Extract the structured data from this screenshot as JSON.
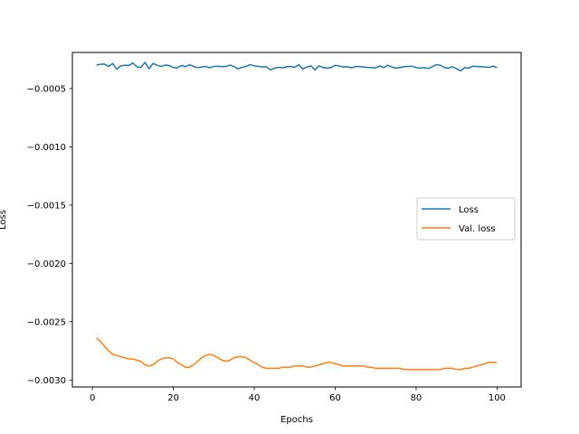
{
  "chart_data": {
    "type": "line",
    "title": "",
    "xlabel": "Epochs",
    "ylabel": "Loss",
    "xlim": [
      -4.95,
      105.95
    ],
    "ylim": [
      -0.00306,
      -0.00019
    ],
    "xticks": [
      0,
      20,
      40,
      60,
      80,
      100
    ],
    "xtick_labels": [
      "0",
      "20",
      "40",
      "60",
      "80",
      "100"
    ],
    "yticks": [
      -0.0005,
      -0.001,
      -0.0015,
      -0.002,
      -0.0025,
      -0.003
    ],
    "ytick_labels": [
      "−0.0005",
      "−0.0010",
      "−0.0015",
      "−0.0020",
      "−0.0025",
      "−0.0030"
    ],
    "grid": false,
    "legend": "center-right",
    "x": [
      1,
      2,
      3,
      4,
      5,
      6,
      7,
      8,
      9,
      10,
      11,
      12,
      13,
      14,
      15,
      16,
      17,
      18,
      19,
      20,
      21,
      22,
      23,
      24,
      25,
      26,
      27,
      28,
      29,
      30,
      31,
      32,
      33,
      34,
      35,
      36,
      37,
      38,
      39,
      40,
      41,
      42,
      43,
      44,
      45,
      46,
      47,
      48,
      49,
      50,
      51,
      52,
      53,
      54,
      55,
      56,
      57,
      58,
      59,
      60,
      61,
      62,
      63,
      64,
      65,
      66,
      67,
      68,
      69,
      70,
      71,
      72,
      73,
      74,
      75,
      76,
      77,
      78,
      79,
      80,
      81,
      82,
      83,
      84,
      85,
      86,
      87,
      88,
      89,
      90,
      91,
      92,
      93,
      94,
      95,
      96,
      97,
      98,
      99,
      100
    ],
    "series": [
      {
        "name": "Loss",
        "color": "#1f77b4",
        "values": [
          -0.000298,
          -0.000292,
          -0.00029,
          -0.00031,
          -0.000285,
          -0.000335,
          -0.000305,
          -0.0003,
          -0.000302,
          -0.00028,
          -0.000315,
          -0.000318,
          -0.000275,
          -0.00033,
          -0.000285,
          -0.0003,
          -0.00031,
          -0.000298,
          -0.000302,
          -0.00032,
          -0.000322,
          -0.000302,
          -0.000312,
          -0.000295,
          -0.00031,
          -0.00032,
          -0.000315,
          -0.00031,
          -0.000322,
          -0.00031,
          -0.000308,
          -0.000312,
          -0.00031,
          -0.000298,
          -0.000312,
          -0.00033,
          -0.000318,
          -0.00031,
          -0.000295,
          -0.000305,
          -0.00031,
          -0.000315,
          -0.000312,
          -0.00034,
          -0.000325,
          -0.000318,
          -0.000322,
          -0.000312,
          -0.00031,
          -0.000318,
          -0.000295,
          -0.000332,
          -0.000315,
          -0.000305,
          -0.00034,
          -0.000305,
          -0.00032,
          -0.000325,
          -0.00032,
          -0.0003,
          -0.000305,
          -0.000315,
          -0.000312,
          -0.000322,
          -0.000312,
          -0.00031,
          -0.000315,
          -0.000318,
          -0.00032,
          -0.000322,
          -0.000305,
          -0.00032,
          -0.0003,
          -0.000315,
          -0.000325,
          -0.00032,
          -0.000312,
          -0.00031,
          -0.000308,
          -0.00032,
          -0.000325,
          -0.00032,
          -0.000328,
          -0.000312,
          -0.000295,
          -0.0003,
          -0.00032,
          -0.000325,
          -0.000312,
          -0.00033,
          -0.000348,
          -0.00032,
          -0.000325,
          -0.000308,
          -0.00031,
          -0.000312,
          -0.000315,
          -0.000318,
          -0.000308,
          -0.00032
        ]
      },
      {
        "name": "Val. loss",
        "color": "#ff7f0e",
        "values": [
          -0.00264,
          -0.00267,
          -0.00271,
          -0.00275,
          -0.00278,
          -0.00279,
          -0.0028,
          -0.00281,
          -0.00282,
          -0.00282,
          -0.00283,
          -0.00284,
          -0.00287,
          -0.00288,
          -0.00287,
          -0.00284,
          -0.00282,
          -0.00281,
          -0.00281,
          -0.00282,
          -0.00285,
          -0.00287,
          -0.00289,
          -0.00289,
          -0.00287,
          -0.00284,
          -0.00281,
          -0.00279,
          -0.00278,
          -0.00279,
          -0.00281,
          -0.00283,
          -0.00284,
          -0.00283,
          -0.00281,
          -0.0028,
          -0.0028,
          -0.00281,
          -0.00283,
          -0.00285,
          -0.00287,
          -0.00289,
          -0.0029,
          -0.0029,
          -0.0029,
          -0.0029,
          -0.00289,
          -0.00289,
          -0.00289,
          -0.00288,
          -0.00288,
          -0.00288,
          -0.00289,
          -0.00289,
          -0.00288,
          -0.00287,
          -0.00286,
          -0.00285,
          -0.00285,
          -0.00286,
          -0.00287,
          -0.00288,
          -0.00288,
          -0.00288,
          -0.00288,
          -0.00288,
          -0.00288,
          -0.00289,
          -0.00289,
          -0.0029,
          -0.0029,
          -0.0029,
          -0.0029,
          -0.0029,
          -0.0029,
          -0.0029,
          -0.00291,
          -0.00291,
          -0.00291,
          -0.00291,
          -0.00291,
          -0.00291,
          -0.00291,
          -0.00291,
          -0.00291,
          -0.00291,
          -0.0029,
          -0.0029,
          -0.0029,
          -0.00291,
          -0.00291,
          -0.0029,
          -0.0029,
          -0.00289,
          -0.00288,
          -0.00287,
          -0.00286,
          -0.00285,
          -0.00285,
          -0.00285
        ]
      }
    ]
  }
}
